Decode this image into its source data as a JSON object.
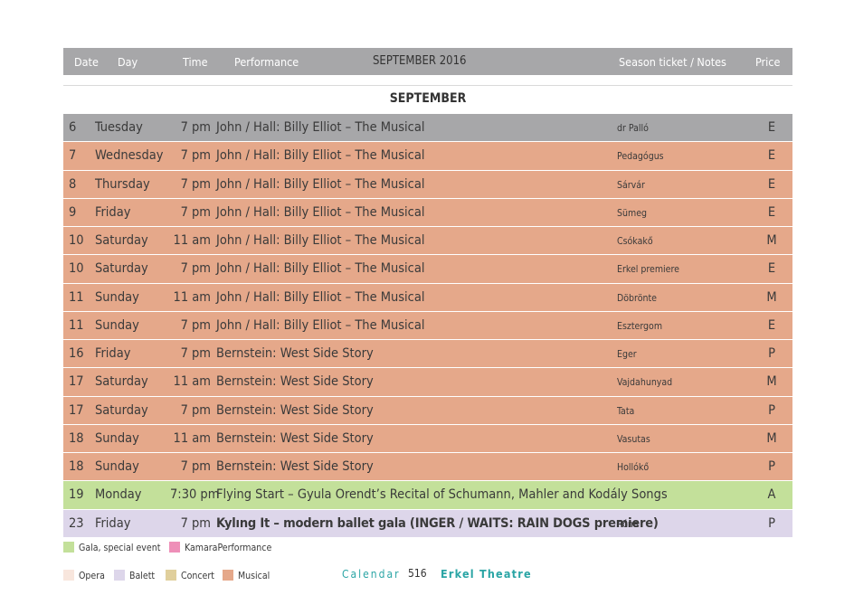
{
  "header": {
    "date": "Date",
    "day": "Day",
    "time": "Time",
    "performance": "Performance",
    "month_year": "SEPTEMBER 2016",
    "notes": "Season ticket / Notes",
    "price": "Price"
  },
  "month_title": "SEPTEMBER",
  "colors": {
    "header": "#a7a7a9",
    "gray_row": "#a7a7a9",
    "musical": "#e5a88a",
    "gala": "#c3e09a",
    "balett": "#ddd6ea",
    "opera": "#f8e6dd",
    "concert": "#e0cf9c",
    "kamara": "#ee8fb8",
    "accent": "#2aa5a5"
  },
  "rows": [
    {
      "date": "6",
      "day": "Tuesday",
      "time": "7 pm",
      "performance": "John / Hall: Billy Elliot – The Musical",
      "notes": "dr Palló",
      "price": "E",
      "kind": "gray_row"
    },
    {
      "date": "7",
      "day": "Wednesday",
      "time": "7 pm",
      "performance": "John / Hall: Billy Elliot – The Musical",
      "notes": "Pedagógus",
      "price": "E",
      "kind": "musical"
    },
    {
      "date": "8",
      "day": "Thursday",
      "time": "7 pm",
      "performance": "John / Hall: Billy Elliot – The Musical",
      "notes": "Sárvár",
      "price": "E",
      "kind": "musical"
    },
    {
      "date": "9",
      "day": "Friday",
      "time": "7 pm",
      "performance": "John / Hall: Billy Elliot – The Musical",
      "notes": "Sümeg",
      "price": "E",
      "kind": "musical"
    },
    {
      "date": "10",
      "day": "Saturday",
      "time": "11 am",
      "performance": "John / Hall: Billy Elliot – The Musical",
      "notes": "Csókakő",
      "price": "M",
      "kind": "musical"
    },
    {
      "date": "10",
      "day": "Saturday",
      "time": "7 pm",
      "performance": "John / Hall: Billy Elliot – The Musical",
      "notes": "Erkel premiere",
      "price": "E",
      "kind": "musical"
    },
    {
      "date": "11",
      "day": "Sunday",
      "time": "11 am",
      "performance": "John / Hall: Billy Elliot – The Musical",
      "notes": "Döbrönte",
      "price": "M",
      "kind": "musical"
    },
    {
      "date": "11",
      "day": "Sunday",
      "time": "7 pm",
      "performance": "John / Hall: Billy Elliot – The Musical",
      "notes": "Esztergom",
      "price": "E",
      "kind": "musical"
    },
    {
      "date": "16",
      "day": "Friday",
      "time": "7 pm",
      "performance": "Bernstein: West Side Story",
      "notes": "Eger",
      "price": "P",
      "kind": "musical"
    },
    {
      "date": "17",
      "day": "Saturday",
      "time": "11 am",
      "performance": "Bernstein: West Side Story",
      "notes": "Vajdahunyad",
      "price": "M",
      "kind": "musical"
    },
    {
      "date": "17",
      "day": "Saturday",
      "time": "7 pm",
      "performance": "Bernstein: West Side Story",
      "notes": "Tata",
      "price": "P",
      "kind": "musical"
    },
    {
      "date": "18",
      "day": "Sunday",
      "time": "11 am",
      "performance": "Bernstein: West Side Story",
      "notes": "Vasutas",
      "price": "M",
      "kind": "musical"
    },
    {
      "date": "18",
      "day": "Sunday",
      "time": "7 pm",
      "performance": "Bernstein: West Side Story",
      "notes": "Hollókő",
      "price": "P",
      "kind": "musical"
    },
    {
      "date": "19",
      "day": "Monday",
      "time": "7:30 pm",
      "performance": "Flying Start – Gyula Orendt’s Recital of Schumann, Mahler and Kodály Songs",
      "notes": "",
      "price": "A",
      "kind": "gala"
    },
    {
      "date": "23",
      "day": "Friday",
      "time": "7 pm",
      "performance": "Kylıng It – modern ballet gala (INGER / WAITS: RAIN DOGS premiere)",
      "notes": "Róna",
      "price": "P",
      "kind": "balett",
      "bold": true
    }
  ],
  "legend": {
    "gala": "Gala, special event",
    "kamara": "KamaraPerformance",
    "opera": "Opera",
    "balett": "Balett",
    "concert": "Concert",
    "musical": "Musical"
  },
  "footer": {
    "calendar": "Calendar",
    "page": "516",
    "theatre": "Erkel Theatre"
  }
}
